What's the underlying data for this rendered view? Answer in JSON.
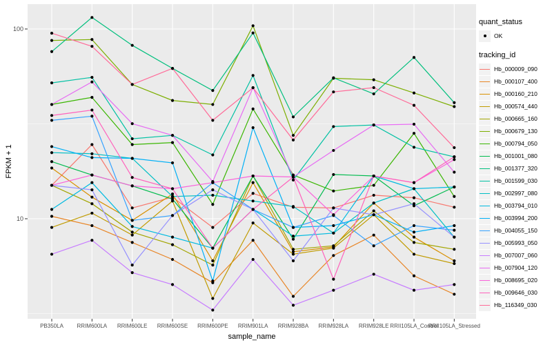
{
  "chart_data": {
    "type": "line",
    "xlabel": "sample_name",
    "ylabel": "FPKM + 1",
    "y_scale": "log10",
    "y_ticks": [
      100,
      10
    ],
    "y_minor_ticks": [
      31.623,
      3.1623
    ],
    "ylim_approx": [
      3,
      135
    ],
    "panel_color": "#EBEBEB",
    "grid_color": "#FFFFFF",
    "point_color": "#000000",
    "tick_label_color": "#4D4D4D",
    "categories": [
      "PB350LA",
      "RRIM600LA",
      "RRIM600LE",
      "RRIM600SE",
      "RRIM600PE",
      "RRIM901LA",
      "RRIM928BA",
      "RRIM928LA",
      "RRIM928LE",
      "RRII105LA_Control",
      "RRII105LA_Stressed"
    ],
    "series": [
      {
        "name": "Hb_000009_090",
        "color": "#F8766D",
        "values": [
          15,
          24.6,
          11.4,
          13.0,
          9.0,
          13.6,
          11.5,
          11.4,
          13.3,
          12.9,
          11.5
        ]
      },
      {
        "name": "Hb_000107_400",
        "color": "#E88526",
        "values": [
          10.3,
          9.2,
          7.5,
          6.1,
          4.6,
          7.7,
          3.9,
          6.4,
          8.2,
          5.0,
          4.0
        ]
      },
      {
        "name": "Hb_000160_210",
        "color": "#D89000",
        "values": [
          18.5,
          13.0,
          9.8,
          13.5,
          6.0,
          15.5,
          6.7,
          7.1,
          12.1,
          8.0,
          6.0
        ]
      },
      {
        "name": "Hb_000574_440",
        "color": "#C09B00",
        "values": [
          9.0,
          10.7,
          8.2,
          12.4,
          3.8,
          9.5,
          6.5,
          7.0,
          10.5,
          6.5,
          5.8
        ]
      },
      {
        "name": "Hb_000665_160",
        "color": "#A3A500",
        "values": [
          15.0,
          12.0,
          8.5,
          7.3,
          5.7,
          16.8,
          6.9,
          7.2,
          11.0,
          7.5,
          6.9
        ]
      },
      {
        "name": "Hb_000679_130",
        "color": "#7CAE00",
        "values": [
          87,
          88,
          51,
          42,
          40,
          104,
          27.5,
          55,
          54,
          46,
          39
        ]
      },
      {
        "name": "Hb_000794_050",
        "color": "#39B600",
        "values": [
          40,
          43.6,
          24.6,
          25.2,
          11.9,
          37.9,
          17.0,
          14.0,
          15.0,
          28.2,
          13.1
        ]
      },
      {
        "name": "Hb_001001_080",
        "color": "#00BB4E",
        "values": [
          20,
          17,
          14.9,
          12.7,
          7.0,
          16.8,
          7.8,
          17.1,
          16.8,
          11.7,
          14.7
        ]
      },
      {
        "name": "Hb_001377_320",
        "color": "#00BF7D",
        "values": [
          76,
          115,
          82,
          62,
          47.4,
          95.3,
          34.4,
          55.3,
          45.5,
          70.8,
          40.9
        ]
      },
      {
        "name": "Hb_001599_030",
        "color": "#00C1A3",
        "values": [
          52,
          55.6,
          26.4,
          27.5,
          21.7,
          56.9,
          16.0,
          30.6,
          31.2,
          23.8,
          21.2
        ]
      },
      {
        "name": "Hb_002997_080",
        "color": "#00BFC4",
        "values": [
          22.3,
          22.0,
          20.8,
          13.1,
          13.3,
          12.4,
          11.6,
          8.4,
          12.1,
          14.4,
          8.0
        ]
      },
      {
        "name": "Hb_003794_010",
        "color": "#00BAE0",
        "values": [
          11.2,
          15.5,
          9.1,
          8.0,
          7.0,
          11.2,
          8.1,
          8.4,
          16.8,
          14.4,
          14.7
        ]
      },
      {
        "name": "Hb_003994_200",
        "color": "#00B0F6",
        "values": [
          24,
          21,
          20.8,
          19.7,
          4.7,
          30.2,
          9.0,
          9.2,
          10.5,
          8.5,
          9.2
        ]
      },
      {
        "name": "Hb_004055_150",
        "color": "#35A2FF",
        "values": [
          33,
          34.7,
          9.8,
          10.4,
          15.5,
          11.2,
          9.0,
          10.4,
          7.2,
          9.2,
          8.7
        ]
      },
      {
        "name": "Hb_005993_050",
        "color": "#9590FF",
        "values": [
          15,
          14.2,
          5.7,
          10.4,
          14.2,
          11.2,
          6.0,
          11.4,
          10.5,
          12.0,
          8.0
        ]
      },
      {
        "name": "Hb_007007_060",
        "color": "#C77CFF",
        "values": [
          6.5,
          7.7,
          5.2,
          4.5,
          3.3,
          6.1,
          3.5,
          4.2,
          5.1,
          4.2,
          4.5
        ]
      },
      {
        "name": "Hb_007904_120",
        "color": "#E76BF3",
        "values": [
          40,
          52.6,
          31.7,
          27.5,
          15.7,
          49.1,
          16.6,
          22.9,
          31.2,
          31.5,
          17.6
        ]
      },
      {
        "name": "Hb_008695_020",
        "color": "#FA62DB",
        "values": [
          15,
          17,
          14.9,
          14.4,
          15.5,
          16.8,
          16.6,
          10.5,
          16.8,
          15.5,
          20.5
        ]
      },
      {
        "name": "Hb_009646_030",
        "color": "#FF62BC",
        "values": [
          35,
          37.4,
          16.5,
          14.4,
          7.0,
          11.2,
          16.6,
          4.8,
          16.8,
          15.5,
          21.2
        ]
      },
      {
        "name": "Hb_116349_030",
        "color": "#FF6A98",
        "values": [
          95,
          81,
          51,
          62,
          33,
          49,
          26,
          46.6,
          49.1,
          39.6,
          23.7
        ]
      }
    ]
  },
  "legend": {
    "quant_title": "quant_status",
    "quant_items": [
      {
        "label": "OK",
        "marker": "point"
      }
    ],
    "tracking_title": "tracking_id",
    "key_fill": "#F2F2F2"
  }
}
